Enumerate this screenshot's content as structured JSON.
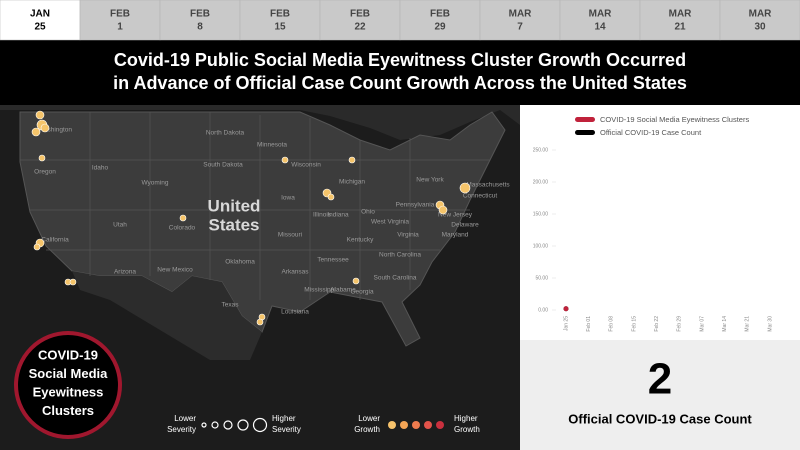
{
  "timeline": [
    {
      "month": "JAN",
      "day": "25"
    },
    {
      "month": "FEB",
      "day": "1"
    },
    {
      "month": "FEB",
      "day": "8"
    },
    {
      "month": "FEB",
      "day": "15"
    },
    {
      "month": "FEB",
      "day": "22"
    },
    {
      "month": "FEB",
      "day": "29"
    },
    {
      "month": "MAR",
      "day": "7"
    },
    {
      "month": "MAR",
      "day": "14"
    },
    {
      "month": "MAR",
      "day": "21"
    },
    {
      "month": "MAR",
      "day": "30"
    }
  ],
  "title_lines": [
    "Covid-19 Public Social Media Eyewitness Cluster Growth Occurred",
    "in Advance of Official Case Count Growth Across the United States"
  ],
  "map": {
    "country_label": [
      "United",
      "States"
    ],
    "state_labels": [
      "Washington",
      "Oregon",
      "Idaho",
      "California",
      "Utah",
      "Arizona",
      "Wyoming",
      "Colorado",
      "New Mexico",
      "Texas",
      "North Dakota",
      "South Dakota",
      "Oklahoma",
      "Minnesota",
      "Iowa",
      "Missouri",
      "Arkansas",
      "Louisiana",
      "Mississippi",
      "Alabama",
      "Georgia",
      "Wisconsin",
      "Illinois",
      "Indiana",
      "Michigan",
      "Ohio",
      "Kentucky",
      "Tennessee",
      "South Carolina",
      "North Carolina",
      "Virginia",
      "West Virginia",
      "Pennsylvania",
      "New York",
      "New Jersey",
      "Delaware",
      "Maryland",
      "Connecticut",
      "Massachusetts"
    ],
    "badge_lines": [
      "COVID-19",
      "Social Media",
      "Eyewitness",
      "Clusters"
    ],
    "severity_low": [
      "Lower",
      "Severity"
    ],
    "severity_high": [
      "Higher",
      "Severity"
    ],
    "growth_low": [
      "Lower",
      "Growth"
    ],
    "growth_high": [
      "Higher",
      "Growth"
    ]
  },
  "chart_data": {
    "type": "line",
    "categories": [
      "Jan 25",
      "Feb 01",
      "Feb 08",
      "Feb 15",
      "Feb 22",
      "Feb 29",
      "Mar 07",
      "Mar 14",
      "Mar 21",
      "Mar 30"
    ],
    "series": [
      {
        "name": "COVID-19 Social Media Eyewitness Clusters",
        "color": "#c0223b",
        "values": [
          2,
          null,
          null,
          null,
          null,
          null,
          null,
          null,
          null,
          null
        ]
      },
      {
        "name": "Official COVID-19 Case Count",
        "color": "#000000",
        "values": [
          2,
          null,
          null,
          null,
          null,
          null,
          null,
          null,
          null,
          null
        ]
      }
    ],
    "ylim": [
      0,
      250
    ],
    "yticks": [
      {
        "value": 0,
        "label": "0.00"
      },
      {
        "value": 50,
        "label": "50.00"
      },
      {
        "value": 100,
        "label": "100.00"
      },
      {
        "value": 150,
        "label": "150.00"
      },
      {
        "value": 200,
        "label": "200.00"
      },
      {
        "value": 250,
        "label": "250.00"
      }
    ]
  },
  "counter": {
    "value": "2",
    "label": "Official COVID-19 Case Count"
  }
}
